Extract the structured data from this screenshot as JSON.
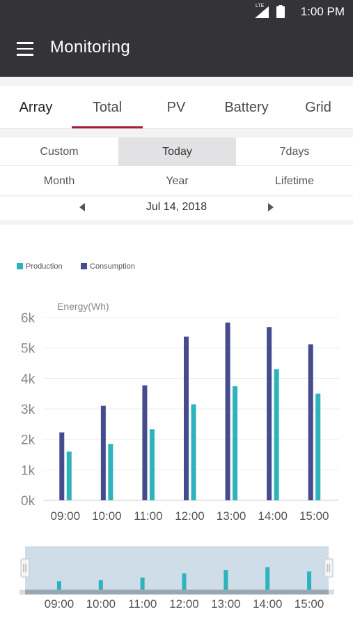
{
  "status_bar": {
    "time": "1:00 PM",
    "network": "LTE"
  },
  "app_bar": {
    "title": "Monitoring",
    "menu_icon": "hamburger-menu-icon"
  },
  "tabs": [
    {
      "label": "Array",
      "active": false
    },
    {
      "label": "Total",
      "active": true
    },
    {
      "label": "PV",
      "active": false
    },
    {
      "label": "Battery",
      "active": false
    },
    {
      "label": "Grid",
      "active": false
    }
  ],
  "period": {
    "row1": [
      "Custom",
      "Today",
      "7days"
    ],
    "row2": [
      "Month",
      "Year",
      "Lifetime"
    ],
    "selected": "Today"
  },
  "date_nav": {
    "date": "Jul 14, 2018",
    "prev_icon": "chevron-left-icon",
    "next_icon": "chevron-right-icon"
  },
  "colors": {
    "production": "#2cb3bc",
    "consumption": "#454b8c",
    "accent": "#a3203a",
    "app_bar": "#333338"
  },
  "chart_data": {
    "type": "bar",
    "ylabel": "Energy(Wh)",
    "categories": [
      "09:00",
      "10:00",
      "11:00",
      "12:00",
      "13:00",
      "14:00",
      "15:00"
    ],
    "series": [
      {
        "name": "Production",
        "values": [
          1600,
          1850,
          2330,
          3150,
          3750,
          4300,
          3500
        ]
      },
      {
        "name": "Consumption",
        "values": [
          2230,
          3100,
          3770,
          5370,
          5830,
          5680,
          5120
        ]
      }
    ],
    "ylim": [
      0,
      6000
    ],
    "yticks": [
      "0k",
      "1k",
      "2k",
      "3k",
      "4k",
      "5k",
      "6k"
    ],
    "grid": true,
    "legend_position": "top-left",
    "navigator": {
      "categories": [
        "09:00",
        "10:00",
        "11:00",
        "12:00",
        "13:00",
        "14:00",
        "15:00"
      ]
    }
  }
}
